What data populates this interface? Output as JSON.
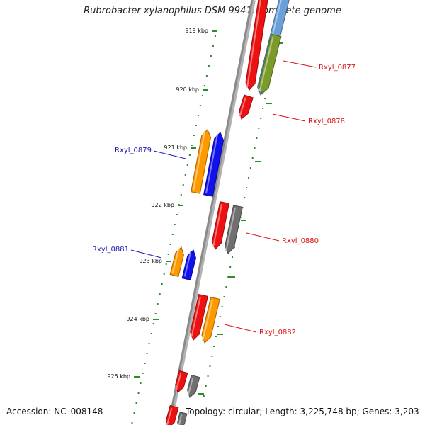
{
  "title": "Rubrobacter xylanophilus DSM 9941, complete genome",
  "accession": "Accession: NC_008148",
  "topology": "Topology: circular; Length: 3,225,748 bp; Genes: 3,203",
  "colors": {
    "backbone": "#8a8a8a",
    "tick": "#2e8b2e",
    "red": "#ee1111",
    "blue": "#1111ee",
    "orange": "#ff9900",
    "olive": "#7a9a2a",
    "gray": "#707070",
    "light_blue": "#6a9fd8",
    "forward_label": "#dd1111",
    "reverse_label": "#1a1ab0"
  },
  "kbp_ticks": [
    "919 kbp",
    "920 kbp",
    "921 kbp",
    "922 kbp",
    "923 kbp",
    "924 kbp",
    "925 kbp"
  ],
  "gene_labels": [
    {
      "text": "Rxyl_0877",
      "strand": "forward"
    },
    {
      "text": "Rxyl_0878",
      "strand": "forward"
    },
    {
      "text": "Rxyl_0879",
      "strand": "reverse"
    },
    {
      "text": "Rxyl_0880",
      "strand": "forward"
    },
    {
      "text": "Rxyl_0881",
      "strand": "reverse"
    },
    {
      "text": "Rxyl_0882",
      "strand": "forward"
    }
  ]
}
